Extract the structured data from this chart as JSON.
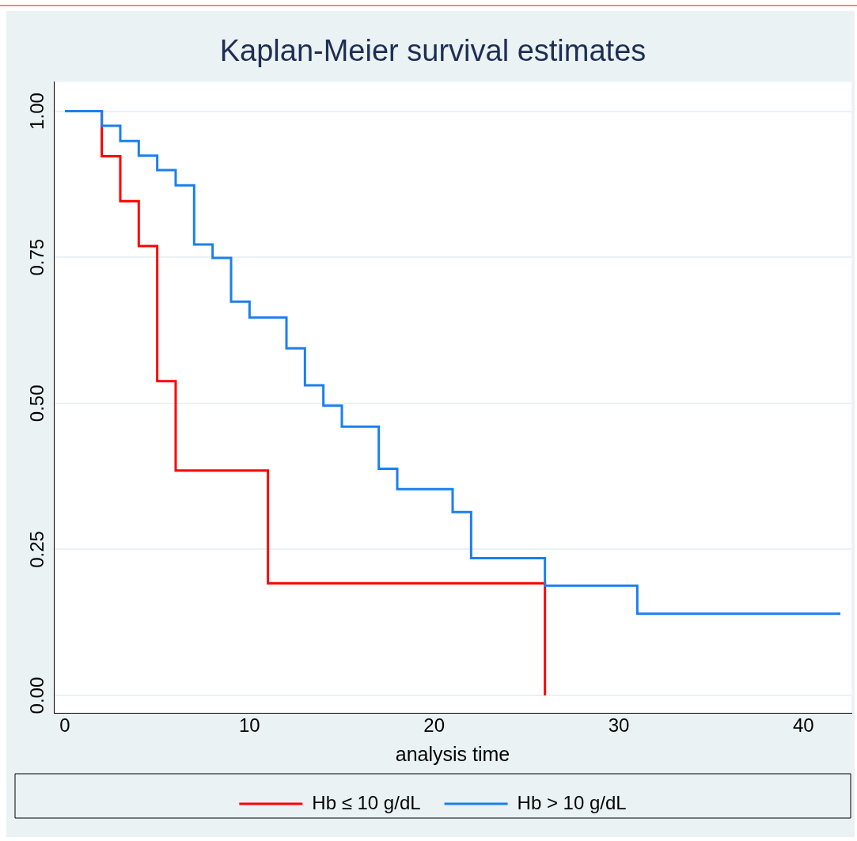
{
  "chart_data": {
    "type": "step",
    "title": "Kaplan-Meier survival estimates",
    "xlabel": "analysis time",
    "xlim": [
      -0.6,
      42.6
    ],
    "xticks": [
      0,
      10,
      20,
      30,
      40
    ],
    "ylim": [
      -0.03,
      1.05
    ],
    "yticks": [
      {
        "value": 0,
        "label": "0.00"
      },
      {
        "value": 0.25,
        "label": "0.25"
      },
      {
        "value": 0.5,
        "label": "0.50"
      },
      {
        "value": 0.75,
        "label": "0.75"
      },
      {
        "value": 1,
        "label": "1.00"
      }
    ],
    "grid": "y",
    "legend": "bottom",
    "marker": "none",
    "series": [
      {
        "name": "Hb ≤ 10 g/dL",
        "color": "#ff0000",
        "x": [
          0,
          2,
          3,
          4,
          5,
          6,
          11,
          26
        ],
        "values": [
          1,
          0.923,
          0.846,
          0.769,
          0.538,
          0.385,
          0.192,
          0
        ]
      },
      {
        "name": "Hb > 10 g/dL",
        "color": "#1a7ff0",
        "x": [
          0,
          2,
          3,
          4,
          5,
          6,
          7,
          8,
          9,
          10,
          12,
          13,
          14,
          15,
          17,
          18,
          21,
          22,
          26,
          31,
          42
        ],
        "values": [
          1,
          0.975,
          0.949,
          0.924,
          0.899,
          0.873,
          0.772,
          0.749,
          0.674,
          0.647,
          0.594,
          0.531,
          0.496,
          0.46,
          0.388,
          0.353,
          0.314,
          0.235,
          0.188,
          0.14,
          0.14
        ]
      }
    ]
  }
}
